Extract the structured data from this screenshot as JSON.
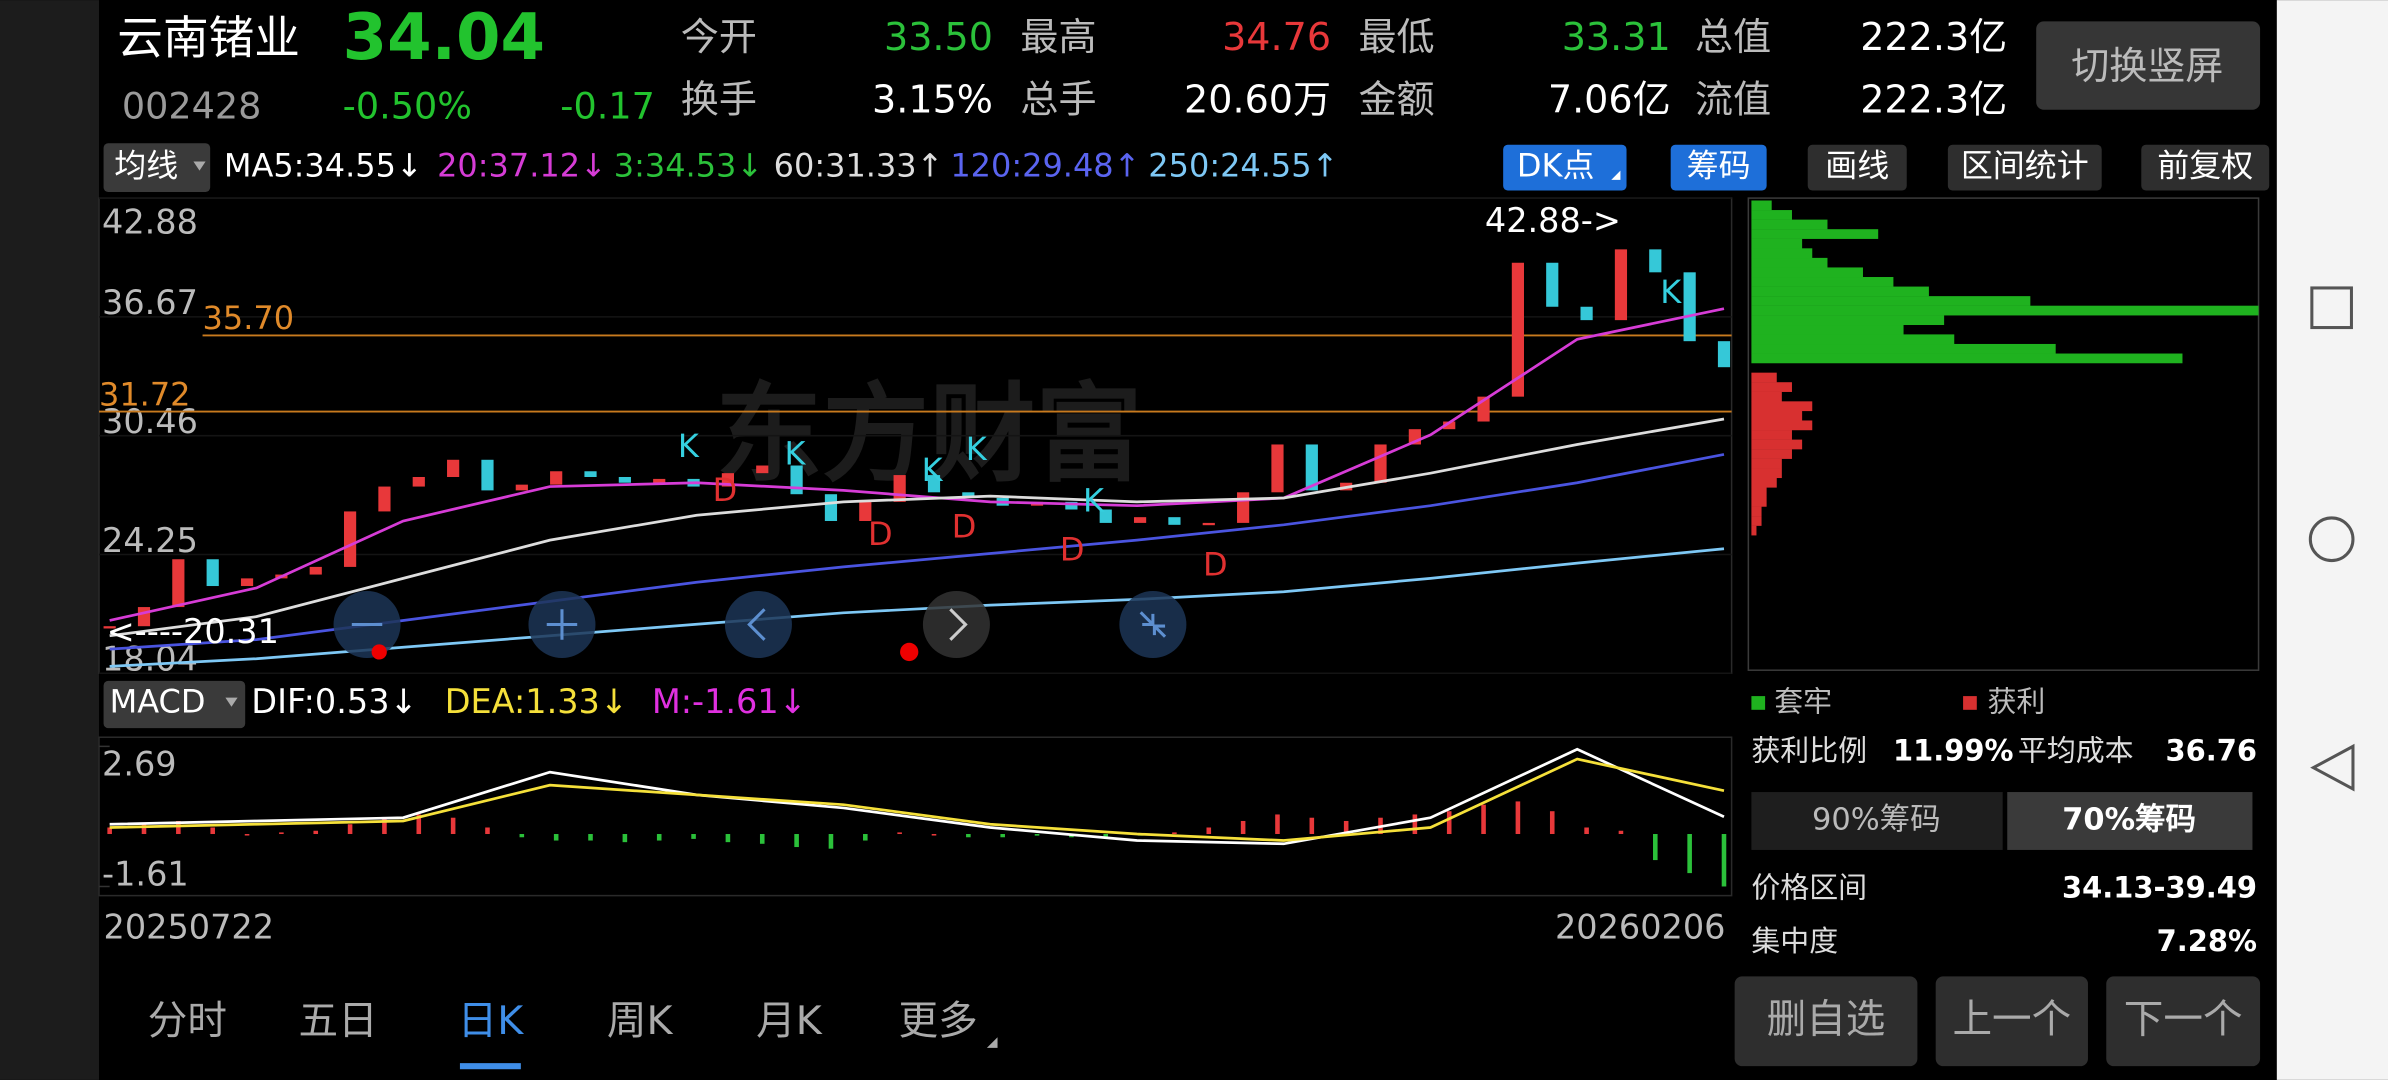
{
  "header": {
    "name": "云南锗业",
    "price": "34.04",
    "code": "002428",
    "change_pct": "-0.50%",
    "change": "-0.17",
    "stats": [
      {
        "label": "今开",
        "value": "33.50",
        "color": "#2bc13a"
      },
      {
        "label": "最高",
        "value": "34.76",
        "color": "#e8383a"
      },
      {
        "label": "最低",
        "value": "33.31",
        "color": "#2bc13a"
      },
      {
        "label": "总值",
        "value": "222.3亿",
        "color": "#ffffff"
      },
      {
        "label": "换手",
        "value": "3.15%",
        "color": "#ffffff"
      },
      {
        "label": "总手",
        "value": "20.60万",
        "color": "#ffffff"
      },
      {
        "label": "金额",
        "value": "7.06亿",
        "color": "#ffffff"
      },
      {
        "label": "流值",
        "value": "222.3亿",
        "color": "#ffffff"
      }
    ],
    "orientation_button": "切换竖屏"
  },
  "toolbar": {
    "ma_menu": "均线",
    "ma_labels": [
      {
        "text": "MA5:34.55↓",
        "color": "#ffffff"
      },
      {
        "text": "20:37.12↓",
        "color": "#d63cd6"
      },
      {
        "text": "3:34.53↓",
        "color": "#2bc13a"
      },
      {
        "text": "60:31.33↑",
        "color": "#dddddd"
      },
      {
        "text": "120:29.48↑",
        "color": "#5a64f0"
      },
      {
        "text": "250:24.55↑",
        "color": "#7ec8f5"
      }
    ],
    "buttons": [
      "DK点",
      "筹码",
      "画线",
      "区间统计",
      "前复权"
    ]
  },
  "kline": {
    "ylim": [
      18.04,
      42.88
    ],
    "yticks": [
      42.88,
      36.67,
      30.46,
      24.25,
      18.04
    ],
    "levels": [
      {
        "value": 35.7,
        "label": "35.70"
      },
      {
        "value": 31.72,
        "label": "31.72"
      }
    ],
    "high_label": "42.88->",
    "low_label": "<----20.31",
    "watermark": "东方财富",
    "close": [
      20.5,
      21.5,
      24.0,
      22.6,
      23.0,
      23.2,
      23.6,
      26.5,
      27.8,
      28.3,
      29.2,
      27.6,
      27.9,
      28.6,
      28.3,
      28.0,
      28.2,
      27.8,
      28.5,
      28.9,
      27.4,
      26.0,
      27.0,
      28.4,
      27.5,
      27.2,
      26.8,
      27.0,
      26.6,
      25.9,
      26.2,
      25.8,
      25.9,
      27.5,
      30.0,
      27.6,
      28.0,
      30.0,
      30.8,
      31.2,
      32.5,
      39.5,
      37.2,
      36.5,
      40.2,
      39.0,
      35.4,
      34.04
    ],
    "ma_lines": [
      {
        "color": "#d63cd6",
        "values": [
          20.8,
          22.5,
          26.0,
          27.8,
          28.0,
          27.6,
          27.0,
          26.8,
          27.2,
          30.5,
          35.5,
          37.1
        ]
      },
      {
        "color": "#dddddd",
        "values": [
          20.0,
          21.0,
          23.0,
          25.0,
          26.3,
          27.0,
          27.3,
          27.0,
          27.2,
          28.5,
          30.0,
          31.33
        ]
      },
      {
        "color": "#4a54e0",
        "values": [
          19.3,
          19.8,
          20.8,
          21.8,
          22.8,
          23.6,
          24.3,
          25.0,
          25.8,
          26.8,
          28.0,
          29.48
        ]
      },
      {
        "color": "#7ec8f5",
        "values": [
          18.4,
          18.8,
          19.4,
          20.0,
          20.6,
          21.2,
          21.6,
          21.9,
          22.3,
          23.0,
          23.8,
          24.55
        ]
      }
    ],
    "signals": [
      "K",
      "K",
      "K",
      "K",
      "K",
      "K",
      "D",
      "D",
      "D",
      "D",
      "D"
    ],
    "start_date": "20250722",
    "end_date": "20260206"
  },
  "macd": {
    "menu": "MACD",
    "labels": [
      {
        "text": "DIF:0.53↓",
        "color": "#ffffff"
      },
      {
        "text": "DEA:1.33↓",
        "color": "#f5e03a"
      },
      {
        "text": "M:-1.61↓",
        "color": "#e030e0"
      }
    ],
    "ylim": [
      -1.61,
      2.69
    ],
    "yticks": [
      2.69,
      -1.61
    ],
    "histogram": [
      0.2,
      0.3,
      0.4,
      0.2,
      0.0,
      0.05,
      0.1,
      0.3,
      0.5,
      0.6,
      0.5,
      0.2,
      -0.1,
      -0.2,
      -0.2,
      -0.25,
      -0.2,
      -0.15,
      -0.25,
      -0.3,
      -0.4,
      -0.45,
      -0.2,
      0.05,
      0.0,
      -0.1,
      -0.1,
      -0.05,
      -0.1,
      -0.1,
      -0.05,
      0.05,
      0.2,
      0.4,
      0.6,
      0.5,
      0.4,
      0.5,
      0.6,
      0.7,
      0.9,
      1.0,
      0.7,
      0.2,
      0.1,
      -0.8,
      -1.2,
      -1.61
    ],
    "dif": [
      0.3,
      0.4,
      0.5,
      1.9,
      1.2,
      0.8,
      0.2,
      -0.2,
      -0.3,
      0.5,
      2.6,
      0.53
    ],
    "dea": [
      0.2,
      0.3,
      0.4,
      1.5,
      1.2,
      0.9,
      0.3,
      0.0,
      -0.2,
      0.2,
      2.3,
      1.33
    ]
  },
  "chips": {
    "legend": [
      "套牢",
      "获利"
    ],
    "trapped_prices": [
      34.5,
      35,
      35.5,
      36,
      36.5,
      37,
      37.5,
      38,
      38.5,
      39,
      39.5,
      40,
      40.5,
      41,
      41.5,
      42,
      42.5
    ],
    "trapped_widths": [
      85,
      60,
      40,
      30,
      38,
      100,
      55,
      35,
      28,
      22,
      15,
      12,
      10,
      25,
      15,
      8,
      4
    ],
    "profit_prices": [
      33.5,
      33,
      32.5,
      32,
      31.5,
      31,
      30.5,
      30,
      29.5,
      29,
      28.5,
      28,
      27.5,
      27,
      26.5,
      26,
      25.5
    ],
    "profit_widths": [
      5,
      8,
      6,
      12,
      10,
      12,
      8,
      10,
      8,
      6,
      6,
      5,
      3,
      3,
      2,
      2,
      1
    ],
    "profit_ratio_label": "获利比例",
    "profit_ratio": "11.99%",
    "avg_cost_label": "平均成本",
    "avg_cost": "36.76",
    "tabs": [
      "90%筹码",
      "70%筹码"
    ],
    "range_label": "价格区间",
    "range": "34.13-39.49",
    "concentration_label": "集中度",
    "concentration": "7.28%"
  },
  "bottom_tabs": [
    "分时",
    "五日",
    "日K",
    "周K",
    "月K",
    "更多"
  ],
  "actions": [
    "删自选",
    "上一个",
    "下一个"
  ]
}
